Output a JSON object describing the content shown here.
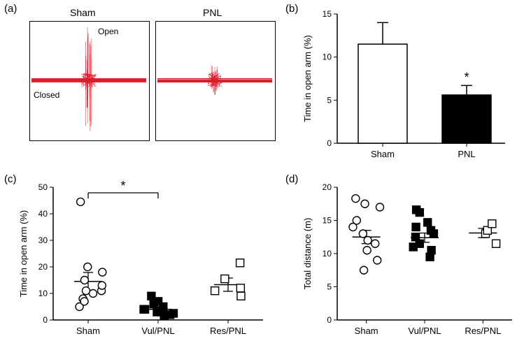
{
  "labels": {
    "a": "(a)",
    "b": "(b)",
    "c": "(c)",
    "d": "(d)"
  },
  "panel_a": {
    "sham": "Sham",
    "pnl": "PNL",
    "open": "Open",
    "closed": "Closed",
    "trace_color": "#d81e2c"
  },
  "panel_b": {
    "ylabel": "Time in open arm (%)",
    "ylim": [
      0,
      15
    ],
    "ytick_step": 5,
    "bars": [
      {
        "name": "Sham",
        "mean": 11.5,
        "err": 2.5,
        "fill": "#ffffff",
        "stroke": "#000000"
      },
      {
        "name": "PNL",
        "mean": 5.6,
        "err": 1.1,
        "fill": "#000000",
        "stroke": "#000000",
        "sig": "*"
      }
    ]
  },
  "panel_c": {
    "ylabel": "Time in open arm (%)",
    "ylim": [
      0,
      50
    ],
    "ytick_step": 10,
    "sig_label": "*",
    "groups": [
      {
        "name": "Sham",
        "marker": "circle",
        "fill": "#ffffff",
        "mean": 14.5,
        "sem": 3.4,
        "points": [
          8,
          5,
          11,
          15,
          10,
          44.5,
          18,
          11,
          7,
          20,
          13
        ]
      },
      {
        "name": "Vul/PNL",
        "marker": "square",
        "fill": "#000000",
        "mean": 4.0,
        "sem": 1.0,
        "points": [
          3,
          4,
          7,
          2,
          9,
          1.5,
          5,
          3,
          2.5,
          6,
          4
        ]
      },
      {
        "name": "Res/PNL",
        "marker": "square",
        "fill": "#ffffff",
        "mean": 13.3,
        "sem": 2.5,
        "points": [
          21.5,
          9,
          11,
          15.5,
          12
        ]
      }
    ]
  },
  "panel_d": {
    "ylabel": "Total distance (m)",
    "ylim": [
      0,
      20
    ],
    "ytick_step": 5,
    "groups": [
      {
        "name": "Sham",
        "marker": "circle",
        "fill": "#ffffff",
        "mean": 12.5,
        "sem": 1.0,
        "points": [
          7.5,
          9,
          10.5,
          11.5,
          12,
          13,
          14,
          15,
          17,
          17.5,
          18.3
        ]
      },
      {
        "name": "Vul/PNL",
        "marker": "square",
        "fill": "#000000",
        "mean": 12.4,
        "sem": 0.7,
        "points": [
          9.5,
          10.5,
          11,
          11.5,
          12.5,
          13,
          13.5,
          14,
          14.7,
          16.2,
          16.6
        ]
      },
      {
        "name": "Res/PNL",
        "marker": "square",
        "fill": "#ffffff",
        "mean": 13.1,
        "sem": 0.7,
        "points": [
          11.5,
          13,
          13.5,
          14.5
        ]
      }
    ]
  }
}
